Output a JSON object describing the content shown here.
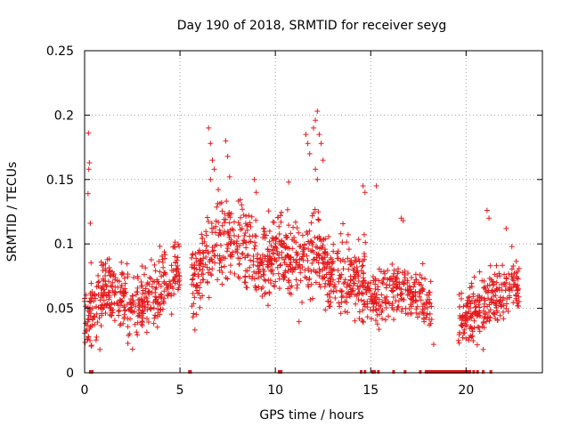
{
  "chart_data": {
    "type": "scatter",
    "title": "Day 190 of 2018, SRMTID for receiver seyg",
    "xlabel": "GPS time / hours",
    "ylabel": "SRMTID / TECUs",
    "xlim": [
      0,
      24
    ],
    "ylim": [
      0,
      0.25
    ],
    "x_ticks": [
      0,
      5,
      10,
      15,
      20
    ],
    "x_tick_labels": [
      "0",
      "5",
      "10",
      "15",
      "20"
    ],
    "y_ticks": [
      0,
      0.05,
      0.1,
      0.15,
      0.2,
      0.25
    ],
    "y_tick_labels": [
      "0",
      "0.05",
      "0.1",
      "0.15",
      "0.2",
      "0.25"
    ],
    "grid": true,
    "marker": "+",
    "series": [
      {
        "name": "SRMTID",
        "color": "#e41a1c",
        "segments": [
          {
            "x0": 0.0,
            "x1": 5.0,
            "n": 420,
            "base": [
              0.045,
              0.055,
              0.065,
              0.06,
              0.055,
              0.05,
              0.06,
              0.065,
              0.07,
              0.08
            ],
            "spread": 0.018
          },
          {
            "x0": 5.6,
            "x1": 14.8,
            "n": 760,
            "base": [
              0.07,
              0.095,
              0.105,
              0.095,
              0.085,
              0.095,
              0.085,
              0.095,
              0.08,
              0.075,
              0.065
            ],
            "spread": 0.022
          },
          {
            "x0": 14.8,
            "x1": 18.2,
            "n": 240,
            "base": [
              0.06,
              0.06,
              0.065,
              0.06,
              0.055
            ],
            "spread": 0.014
          },
          {
            "x0": 19.6,
            "x1": 22.8,
            "n": 260,
            "base": [
              0.04,
              0.045,
              0.05,
              0.055,
              0.06,
              0.065,
              0.07
            ],
            "spread": 0.016
          }
        ],
        "spikes": [
          [
            0.2,
            0.186
          ],
          [
            0.25,
            0.163
          ],
          [
            0.22,
            0.158
          ],
          [
            0.18,
            0.139
          ],
          [
            0.3,
            0.116
          ],
          [
            6.5,
            0.19
          ],
          [
            6.6,
            0.178
          ],
          [
            6.7,
            0.165
          ],
          [
            6.8,
            0.158
          ],
          [
            6.6,
            0.15
          ],
          [
            7.4,
            0.18
          ],
          [
            7.5,
            0.168
          ],
          [
            7.6,
            0.152
          ],
          [
            8.9,
            0.15
          ],
          [
            9.0,
            0.14
          ],
          [
            10.7,
            0.148
          ],
          [
            11.6,
            0.185
          ],
          [
            11.7,
            0.178
          ],
          [
            11.8,
            0.17
          ],
          [
            12.0,
            0.19
          ],
          [
            12.1,
            0.196
          ],
          [
            12.2,
            0.203
          ],
          [
            12.3,
            0.185
          ],
          [
            12.4,
            0.178
          ],
          [
            12.5,
            0.165
          ],
          [
            12.1,
            0.158
          ],
          [
            12.2,
            0.15
          ],
          [
            14.6,
            0.145
          ],
          [
            14.7,
            0.14
          ],
          [
            15.3,
            0.145
          ],
          [
            16.6,
            0.12
          ],
          [
            16.7,
            0.118
          ],
          [
            21.1,
            0.126
          ],
          [
            21.2,
            0.12
          ],
          [
            22.1,
            0.112
          ],
          [
            22.4,
            0.098
          ],
          [
            18.3,
            0.022
          ],
          [
            19.6,
            0.025
          ],
          [
            20.9,
            0.018
          ],
          [
            0.8,
            0.018
          ]
        ],
        "zero_hours": [
          0.3,
          0.4,
          5.5,
          5.55,
          10.2,
          10.3,
          14.5,
          14.7,
          15.1,
          15.2,
          15.4,
          16.2,
          16.8,
          17.6,
          17.9,
          18.0,
          18.1,
          18.2,
          18.3,
          18.4,
          18.5,
          18.6,
          18.7,
          18.8,
          18.9,
          19.0,
          19.1,
          19.2,
          19.3,
          19.4,
          19.5,
          19.6,
          19.7,
          19.8,
          19.9,
          20.0,
          20.1,
          20.2,
          20.4,
          20.6,
          20.9,
          21.3
        ]
      }
    ]
  }
}
